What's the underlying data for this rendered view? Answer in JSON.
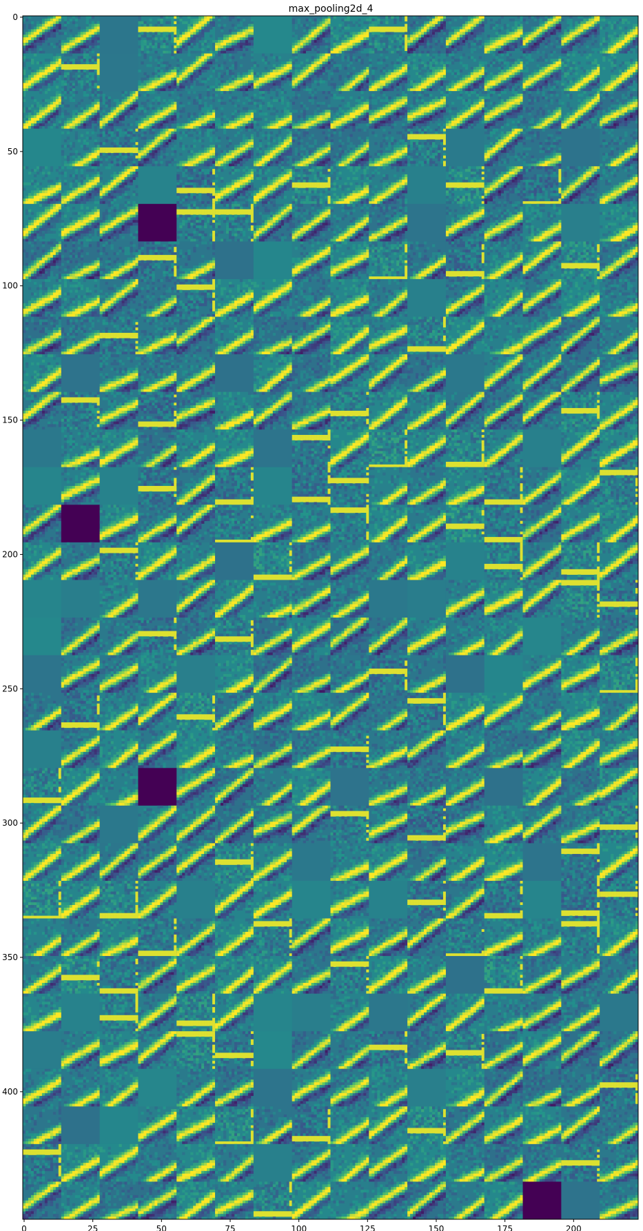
{
  "chart_data": {
    "type": "heatmap",
    "title": "max_pooling2d_4",
    "xlabel": "",
    "ylabel": "",
    "xlim": [
      -0.5,
      223.5
    ],
    "ylim": [
      447.5,
      -0.5
    ],
    "grid": false,
    "colormap": "viridis",
    "tile_grid": {
      "columns": 16,
      "rows": 32,
      "tile_size": 14
    },
    "x_ticks": [
      0,
      25,
      50,
      75,
      100,
      125,
      150,
      175,
      200
    ],
    "y_ticks": [
      0,
      50,
      100,
      150,
      200,
      250,
      300,
      350,
      400
    ],
    "uniform_dark_tiles": [
      [
        3,
        5
      ],
      [
        1,
        13
      ],
      [
        3,
        20
      ],
      [
        13,
        31
      ]
    ],
    "colors": {
      "low": "#440154",
      "mid": "#21918c",
      "high": "#fde725",
      "separator": "#3a6a8a"
    }
  }
}
